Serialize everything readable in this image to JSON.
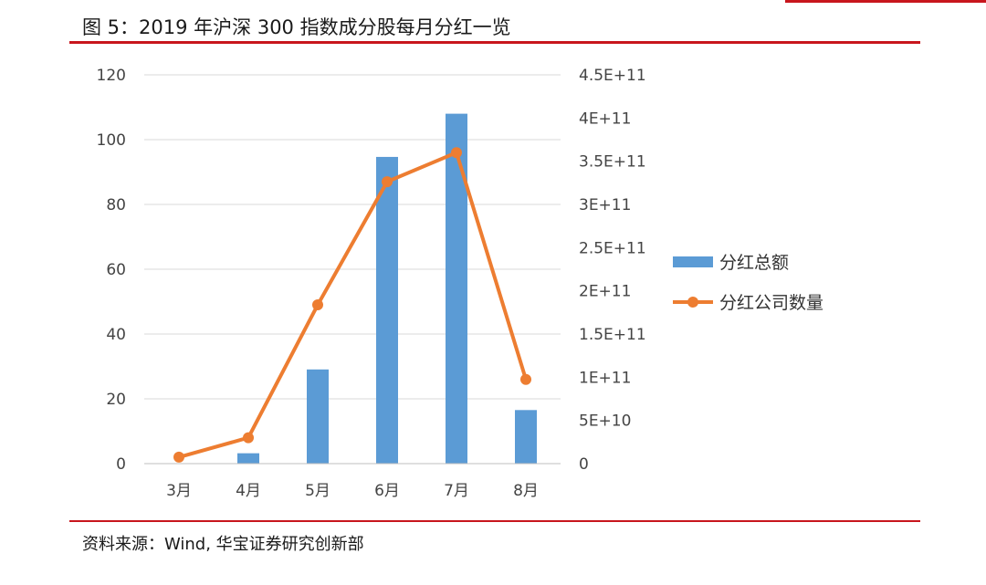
{
  "figure": {
    "title": "图 5：2019 年沪深 300 指数成分股每月分红一览",
    "source": "资料来源：Wind, 华宝证券研究创新部"
  },
  "colors": {
    "accent": "#c8161d",
    "bar": "#5b9bd5",
    "line": "#ed7d31",
    "grid": "#d9d9d9"
  },
  "chart_data": {
    "type": "bar",
    "categories": [
      "3月",
      "4月",
      "5月",
      "6月",
      "7月",
      "8月"
    ],
    "series": [
      {
        "name": "分红总额",
        "type": "bar",
        "axis": "right",
        "values": [
          0,
          12000000000,
          109000000000,
          355000000000,
          405000000000,
          62000000000
        ]
      },
      {
        "name": "分红公司数量",
        "type": "line",
        "axis": "left",
        "values": [
          2,
          8,
          49,
          87,
          96,
          26
        ]
      }
    ],
    "y_left": {
      "ylim": [
        0,
        120
      ],
      "ticks": [
        "0",
        "20",
        "40",
        "60",
        "80",
        "100",
        "120"
      ]
    },
    "y_right": {
      "ylim": [
        0,
        450000000000
      ],
      "ticks": [
        "0",
        "5E+10",
        "1E+11",
        "1.5E+11",
        "2E+11",
        "2.5E+11",
        "3E+11",
        "3.5E+11",
        "4E+11",
        "4.5E+11"
      ]
    },
    "grid": true,
    "legend_position": "right"
  }
}
